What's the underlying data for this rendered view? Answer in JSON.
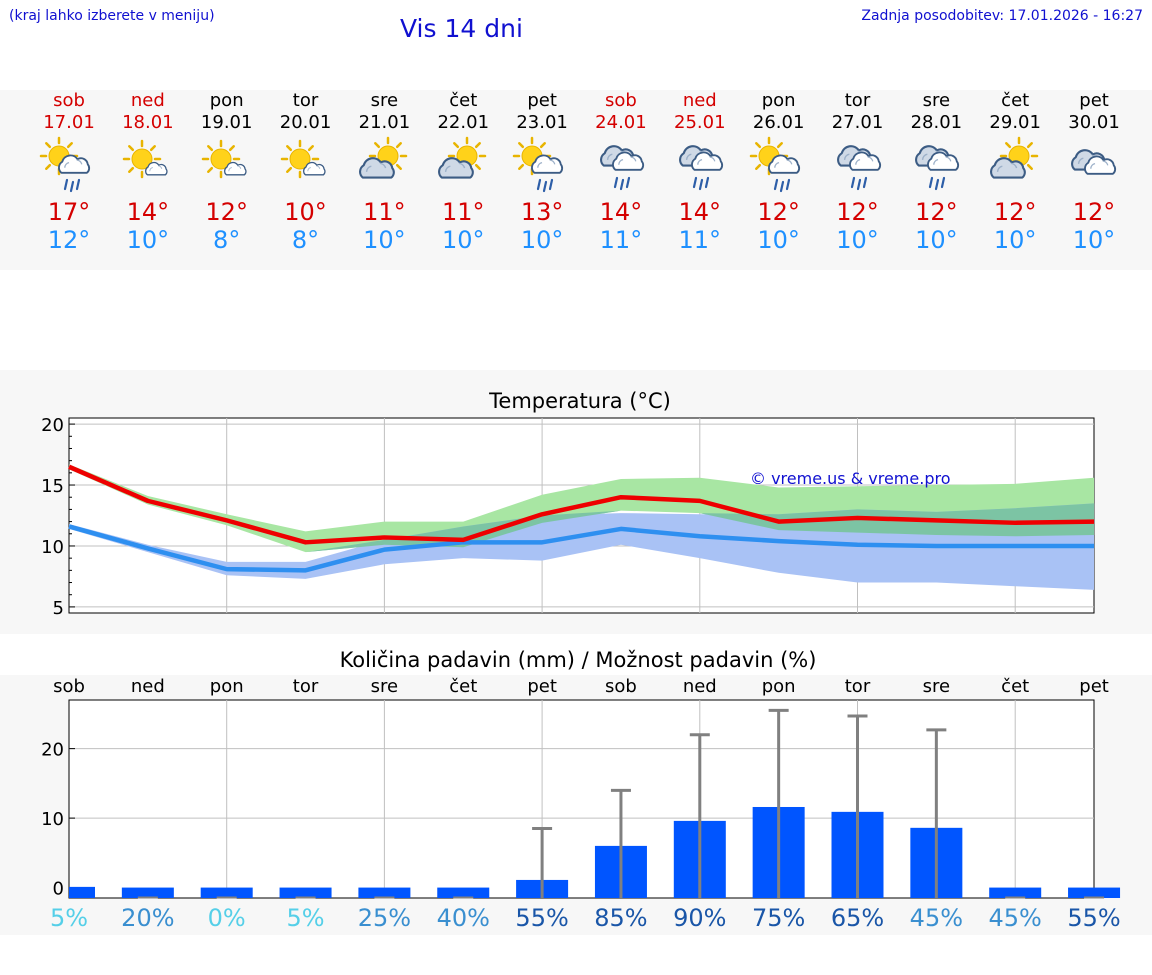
{
  "header": {
    "left": "(kraj lahko izberete v meniju)",
    "title": "Vis 14 dni",
    "right": "Zadnja posodobitev: 17.01.2026 - 16:27"
  },
  "days": [
    {
      "name": "sob",
      "date": "17.01",
      "icon": "sun-cloud-rain-icon",
      "tmax": "17°",
      "tmin": "12°",
      "weekend": true
    },
    {
      "name": "ned",
      "date": "18.01",
      "icon": "sun-small-cloud-icon",
      "tmax": "14°",
      "tmin": "10°",
      "weekend": true
    },
    {
      "name": "pon",
      "date": "19.01",
      "icon": "sun-small-cloud-icon",
      "tmax": "12°",
      "tmin": "8°",
      "weekend": false
    },
    {
      "name": "tor",
      "date": "20.01",
      "icon": "sun-small-cloud-icon",
      "tmax": "10°",
      "tmin": "8°",
      "weekend": false
    },
    {
      "name": "sre",
      "date": "21.01",
      "icon": "sun-cloud-icon",
      "tmax": "11°",
      "tmin": "10°",
      "weekend": false
    },
    {
      "name": "čet",
      "date": "22.01",
      "icon": "sun-cloud-icon",
      "tmax": "11°",
      "tmin": "10°",
      "weekend": false
    },
    {
      "name": "pet",
      "date": "23.01",
      "icon": "sun-cloud-rain-icon",
      "tmax": "13°",
      "tmin": "10°",
      "weekend": false
    },
    {
      "name": "sob",
      "date": "24.01",
      "icon": "cloud-rain-icon",
      "tmax": "14°",
      "tmin": "11°",
      "weekend": true
    },
    {
      "name": "ned",
      "date": "25.01",
      "icon": "cloud-rain-icon",
      "tmax": "14°",
      "tmin": "11°",
      "weekend": true
    },
    {
      "name": "pon",
      "date": "26.01",
      "icon": "sun-cloud-rain-icon",
      "tmax": "12°",
      "tmin": "10°",
      "weekend": false
    },
    {
      "name": "tor",
      "date": "27.01",
      "icon": "cloud-rain-icon",
      "tmax": "12°",
      "tmin": "10°",
      "weekend": false
    },
    {
      "name": "sre",
      "date": "28.01",
      "icon": "cloud-rain-icon",
      "tmax": "12°",
      "tmin": "10°",
      "weekend": false
    },
    {
      "name": "čet",
      "date": "29.01",
      "icon": "sun-cloud-icon",
      "tmax": "12°",
      "tmin": "10°",
      "weekend": false
    },
    {
      "name": "pet",
      "date": "30.01",
      "icon": "cloud-icon",
      "tmax": "12°",
      "tmin": "10°",
      "weekend": false
    }
  ],
  "colors": {
    "max_line": "#ee0000",
    "min_line": "#2e8ff0",
    "max_band": "#a8e6a3",
    "min_band": "#a9c2f5",
    "overlap_band": "#7cc4a4",
    "bar": "#0055ff",
    "whisker": "#808080",
    "pct_low": "#55cfe8",
    "pct_mid": "#3a8fd0",
    "pct_high": "#1a56a8"
  },
  "chart_data": [
    {
      "type": "line",
      "title": "Temperatura (°C)",
      "watermark": "© vreme.us & vreme.pro",
      "x": [
        0,
        1,
        2,
        3,
        4,
        5,
        6,
        7,
        8,
        9,
        10,
        11,
        12,
        13
      ],
      "ylim": [
        4.5,
        20.5
      ],
      "yticks": [
        "20",
        "15",
        "10",
        "5"
      ],
      "ytick_values": [
        20,
        15,
        10,
        5
      ],
      "series": [
        {
          "name": "max",
          "values": [
            16.5,
            13.7,
            12.1,
            10.3,
            10.7,
            10.5,
            12.6,
            14.0,
            13.7,
            12.0,
            12.3,
            12.1,
            11.9,
            12.0
          ],
          "band_low": [
            16.3,
            13.4,
            11.7,
            9.5,
            10.1,
            9.9,
            11.9,
            12.9,
            12.7,
            11.3,
            11.1,
            10.9,
            10.8,
            10.9
          ],
          "band_high": [
            16.7,
            14.1,
            12.6,
            11.2,
            12.0,
            12.0,
            14.2,
            15.5,
            15.6,
            14.8,
            14.9,
            15.0,
            15.1,
            15.6
          ]
        },
        {
          "name": "min",
          "values": [
            11.6,
            9.8,
            8.1,
            8.0,
            9.7,
            10.3,
            10.3,
            11.4,
            10.8,
            10.4,
            10.1,
            10.0,
            10.0,
            10.0
          ],
          "band_low": [
            11.4,
            9.5,
            7.6,
            7.3,
            8.5,
            9.0,
            8.8,
            10.1,
            9.0,
            7.8,
            7.0,
            7.0,
            6.7,
            6.4
          ],
          "band_high": [
            11.8,
            10.1,
            8.7,
            8.7,
            10.5,
            11.6,
            12.5,
            12.7,
            12.6,
            12.6,
            13.0,
            12.8,
            13.1,
            13.5
          ]
        }
      ]
    },
    {
      "type": "bar",
      "title": "Količina padavin (mm) / Možnost padavin (%)",
      "categories": [
        "sob",
        "ned",
        "pon",
        "tor",
        "sre",
        "čet",
        "pet",
        "sob",
        "ned",
        "pon",
        "tor",
        "sre",
        "čet",
        "pet"
      ],
      "values": [
        0.1,
        0,
        0,
        0,
        0,
        0,
        1.1,
        6.0,
        9.6,
        11.6,
        10.9,
        8.6,
        0,
        0
      ],
      "whisker_high": [
        0,
        0,
        0,
        0,
        0,
        0,
        8.5,
        14.0,
        22.0,
        25.5,
        24.7,
        22.7,
        0,
        0
      ],
      "chance": [
        "5%",
        "20%",
        "0%",
        "5%",
        "25%",
        "40%",
        "55%",
        "85%",
        "90%",
        "75%",
        "65%",
        "45%",
        "45%",
        "55%"
      ],
      "ylim": [
        -1.5,
        27
      ],
      "yticks": [
        "20",
        "10",
        "0"
      ],
      "ytick_values": [
        20,
        10,
        0
      ]
    }
  ]
}
